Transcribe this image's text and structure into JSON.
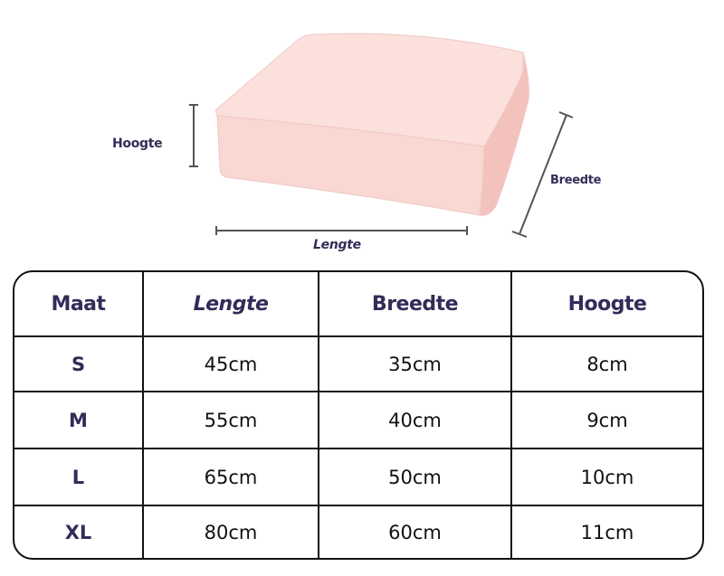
{
  "diagram": {
    "labels": {
      "height": "Hoogte",
      "width": "Breedte",
      "length": "Lengte"
    },
    "colors": {
      "cushion_top": "#fbe0dc",
      "cushion_front": "#f9d7d3",
      "cushion_side": "#f3c2bd",
      "text": "#342b58"
    }
  },
  "table": {
    "headers": [
      "Maat",
      "Lengte",
      "Breedte",
      "Hoogte"
    ],
    "rows": [
      {
        "size": "S",
        "length": "45cm",
        "width": "35cm",
        "height": "8cm"
      },
      {
        "size": "M",
        "length": "55cm",
        "width": "40cm",
        "height": "9cm"
      },
      {
        "size": "L",
        "length": "65cm",
        "width": "50cm",
        "height": "10cm"
      },
      {
        "size": "XL",
        "length": "80cm",
        "width": "60cm",
        "height": "11cm"
      }
    ]
  }
}
